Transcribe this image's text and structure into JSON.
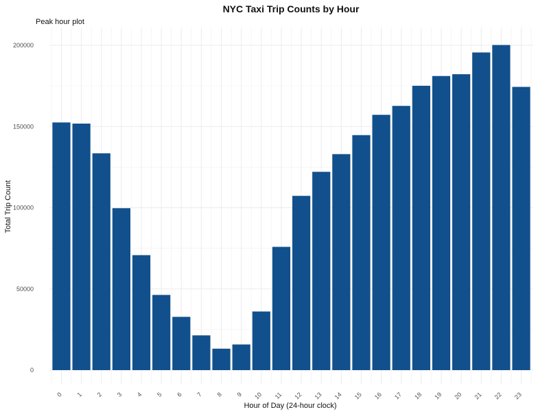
{
  "chart_data": {
    "type": "bar",
    "title": "NYC Taxi Trip Counts by Hour",
    "subtitle": "Peak hour plot",
    "xlabel": "Hour of Day (24-hour clock)",
    "ylabel": "Total Trip Count",
    "categories": [
      "0",
      "1",
      "2",
      "3",
      "4",
      "5",
      "6",
      "7",
      "8",
      "9",
      "10",
      "11",
      "12",
      "13",
      "14",
      "15",
      "16",
      "17",
      "18",
      "19",
      "20",
      "21",
      "22",
      "23"
    ],
    "values": [
      152500,
      151800,
      133500,
      99700,
      70800,
      46300,
      32800,
      21400,
      13200,
      15800,
      36100,
      75900,
      107300,
      122100,
      133000,
      144700,
      157200,
      162700,
      175100,
      181100,
      182200,
      195600,
      200200,
      174400
    ],
    "y_ticks": [
      0,
      50000,
      100000,
      150000,
      200000
    ],
    "y_tick_labels": [
      "0",
      "50000",
      "100000",
      "150000",
      "200000"
    ],
    "ylim": [
      -5000,
      210000
    ],
    "grid": true,
    "legend": "none",
    "bar_color": "#11508c"
  }
}
